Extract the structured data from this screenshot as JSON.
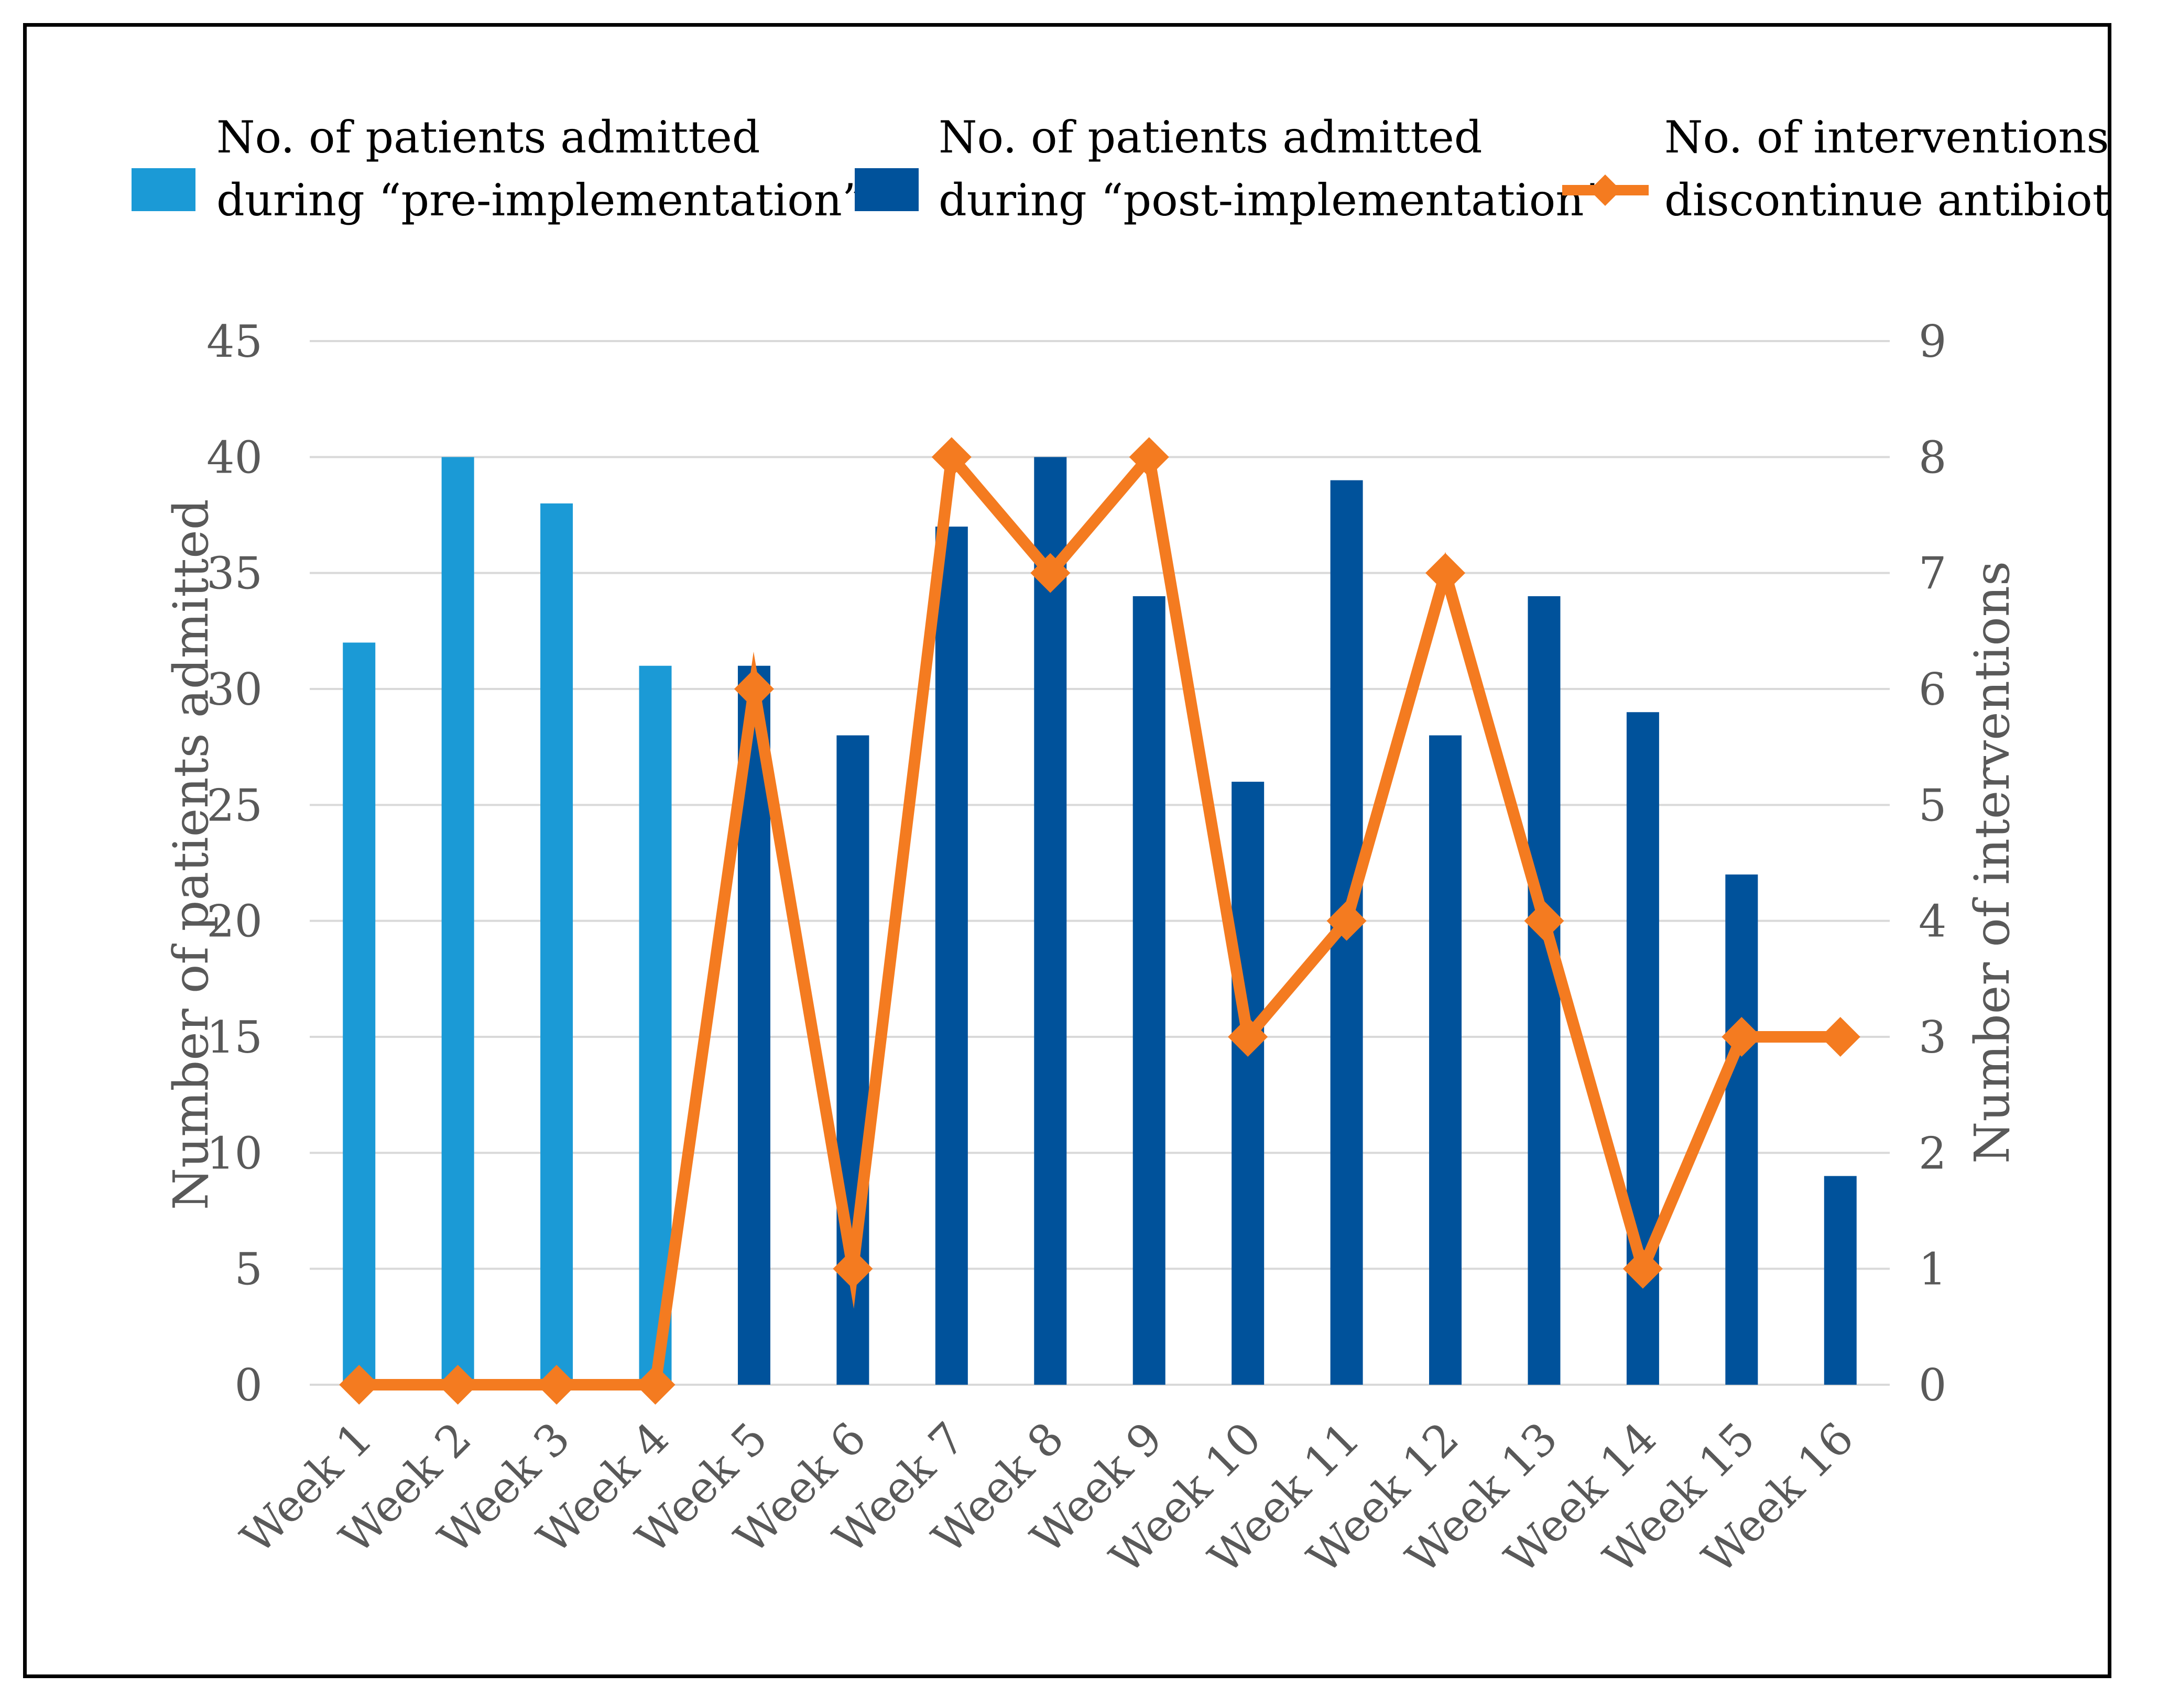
{
  "chart_data": {
    "type": "bar+line",
    "categories": [
      "Week 1",
      "Week 2",
      "Week 3",
      "Week 4",
      "Week 5",
      "Week 6",
      "Week 7",
      "Week 8",
      "Week 9",
      "Week 10",
      "Week 11",
      "Week 12",
      "Week 13",
      "Week 14",
      "Week 15",
      "Week 16"
    ],
    "series": [
      {
        "name": "No. of patients admitted during “pre-implementation”",
        "kind": "bar",
        "axis": "left",
        "color": "#1b9ad6",
        "values": [
          32,
          40,
          38,
          31,
          null,
          null,
          null,
          null,
          null,
          null,
          null,
          null,
          null,
          null,
          null,
          null
        ]
      },
      {
        "name": "No. of patients admitted during “post-implementation”",
        "kind": "bar",
        "axis": "left",
        "color": "#00529b",
        "values": [
          null,
          null,
          null,
          null,
          31,
          28,
          37,
          40,
          34,
          26,
          39,
          28,
          34,
          29,
          22,
          9
        ]
      },
      {
        "name": "No. of interventions to discontinue antibiotics",
        "kind": "line",
        "axis": "right",
        "color": "#f47b20",
        "values": [
          0,
          0,
          0,
          0,
          6,
          1,
          8,
          7,
          8,
          3,
          4,
          7,
          4,
          1,
          3,
          3
        ]
      }
    ],
    "legend": [
      {
        "line1": "No. of patients admitted",
        "line2": "during “pre-implementation”",
        "color": "#1b9ad6",
        "marker": "square"
      },
      {
        "line1": "No. of patients admitted",
        "line2": "during “post-implementation”",
        "color": "#00529b",
        "marker": "square"
      },
      {
        "line1": "No. of interventions to",
        "line2": "discontinue antibiotics",
        "color": "#f47b20",
        "marker": "line-diamond"
      }
    ],
    "ylabel_left": "Number of patients admitted",
    "ylabel_right": "Number of interventions",
    "ylim_left": [
      0,
      45
    ],
    "yticks_left": [
      0,
      5,
      10,
      15,
      20,
      25,
      30,
      35,
      40,
      45
    ],
    "ylim_right": [
      0,
      9
    ],
    "yticks_right": [
      0,
      1,
      2,
      3,
      4,
      5,
      6,
      7,
      8,
      9
    ],
    "grid": true,
    "legend_position": "top"
  }
}
